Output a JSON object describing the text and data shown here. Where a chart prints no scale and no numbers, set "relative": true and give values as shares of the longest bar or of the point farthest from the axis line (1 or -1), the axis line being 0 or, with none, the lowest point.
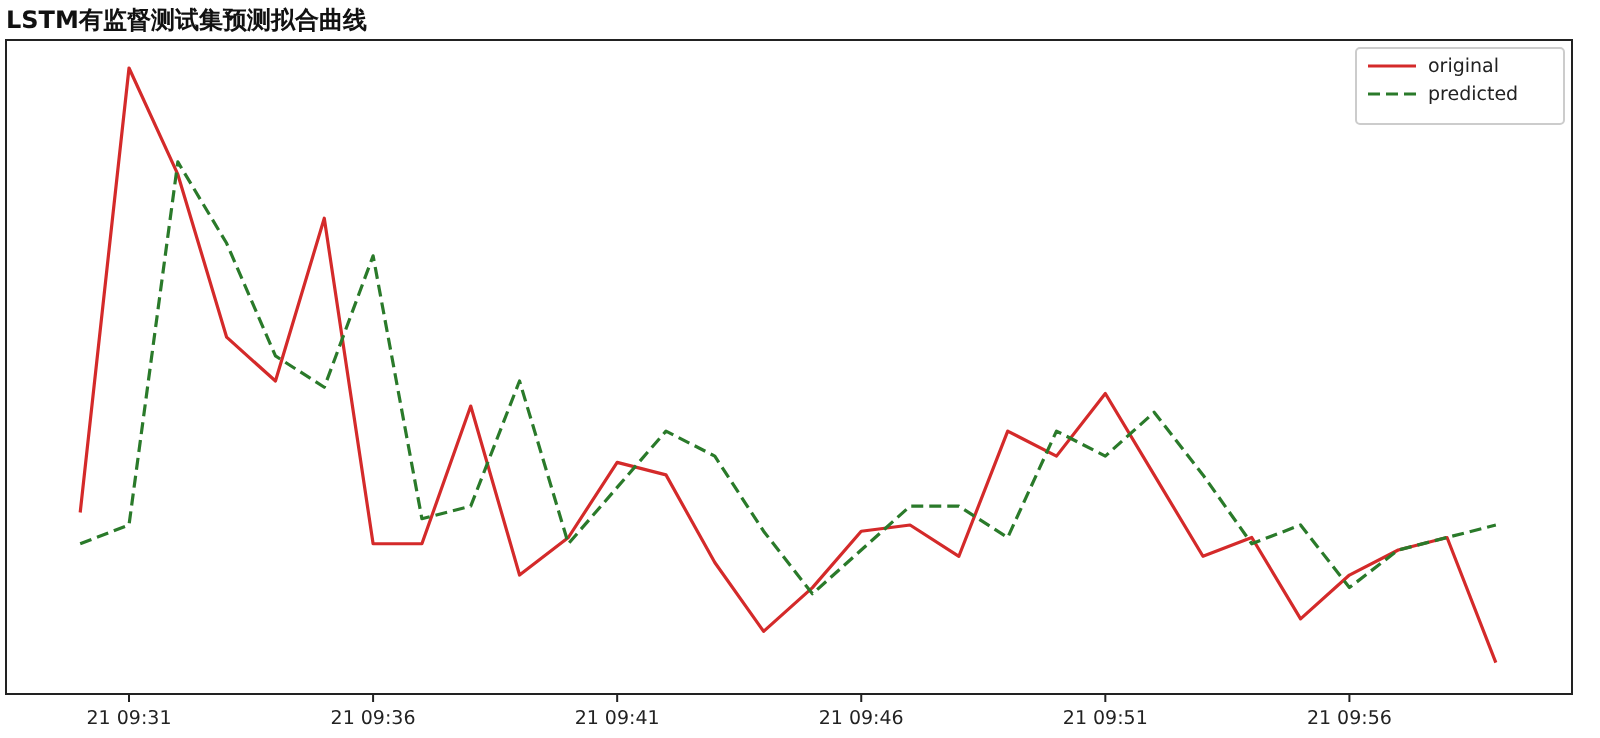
{
  "chart_data": {
    "type": "line",
    "title": "LSTM有监督测试集预测拟合曲线",
    "relative": true,
    "legend": "top right",
    "categories": [
      null,
      "21 09:31",
      null,
      null,
      null,
      null,
      "21 09:36",
      null,
      null,
      null,
      null,
      "21 09:41",
      null,
      null,
      null,
      null,
      "21 09:46",
      null,
      null,
      null,
      null,
      "21 09:51",
      null,
      null,
      null,
      null,
      "21 09:56",
      null,
      null,
      null
    ],
    "series": [
      {
        "name": "original",
        "color": "#d42a2a",
        "line_style": "solid",
        "values": [
          0.29,
          1.0,
          0.83,
          0.57,
          0.5,
          0.76,
          0.24,
          0.24,
          0.46,
          0.19,
          0.25,
          0.37,
          0.35,
          0.21,
          0.1,
          0.17,
          0.26,
          0.27,
          0.22,
          0.42,
          0.38,
          0.48,
          0.35,
          0.22,
          0.25,
          0.12,
          0.19,
          0.23,
          0.25,
          0.05
        ]
      },
      {
        "name": "predicted",
        "color": "#2a7a2a",
        "line_style": "dashed",
        "values": [
          0.24,
          0.27,
          0.85,
          0.72,
          0.54,
          0.49,
          0.7,
          0.28,
          0.3,
          0.5,
          0.24,
          0.33,
          0.42,
          0.38,
          0.26,
          0.16,
          0.23,
          0.3,
          0.3,
          0.25,
          0.42,
          0.38,
          0.45,
          0.35,
          0.24,
          0.27,
          0.17,
          0.23,
          0.25,
          0.27
        ]
      }
    ]
  }
}
